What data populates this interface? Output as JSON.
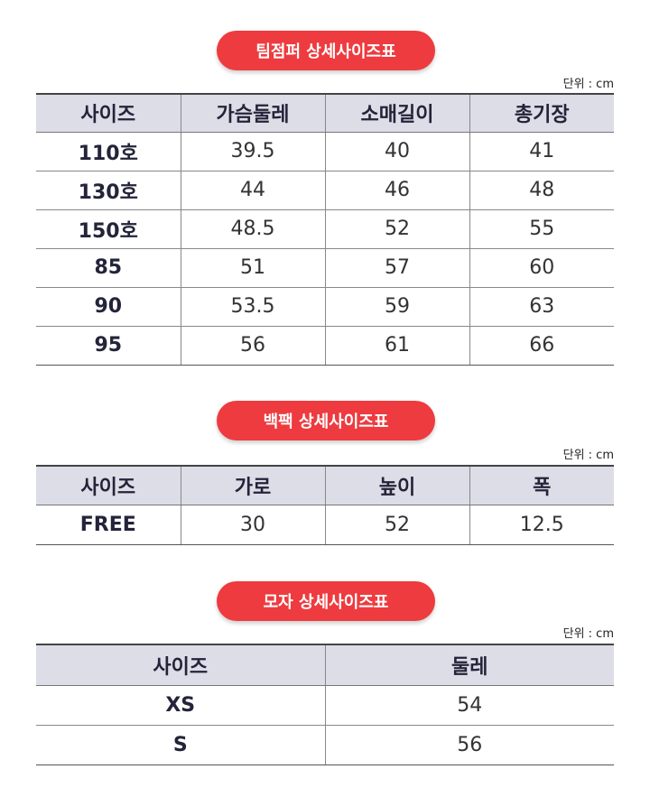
{
  "sections": [
    {
      "title": "팀점퍼 상세사이즈표",
      "unit": "단위 : cm",
      "headers": [
        "사이즈",
        "가슴둘레",
        "소매길이",
        "총기장"
      ],
      "rows": [
        [
          "110호",
          "39.5",
          "40",
          "41"
        ],
        [
          "130호",
          "44",
          "46",
          "48"
        ],
        [
          "150호",
          "48.5",
          "52",
          "55"
        ],
        [
          "85",
          "51",
          "57",
          "60"
        ],
        [
          "90",
          "53.5",
          "59",
          "63"
        ],
        [
          "95",
          "56",
          "61",
          "66"
        ]
      ]
    },
    {
      "title": "백팩 상세사이즈표",
      "unit": "단위 : cm",
      "headers": [
        "사이즈",
        "가로",
        "높이",
        "폭"
      ],
      "rows": [
        [
          "FREE",
          "30",
          "52",
          "12.5"
        ]
      ]
    },
    {
      "title": "모자 상세사이즈표",
      "unit": "단위 : cm",
      "headers": [
        "사이즈",
        "둘레"
      ],
      "rows": [
        [
          "XS",
          "54"
        ],
        [
          "S",
          "56"
        ]
      ]
    }
  ]
}
